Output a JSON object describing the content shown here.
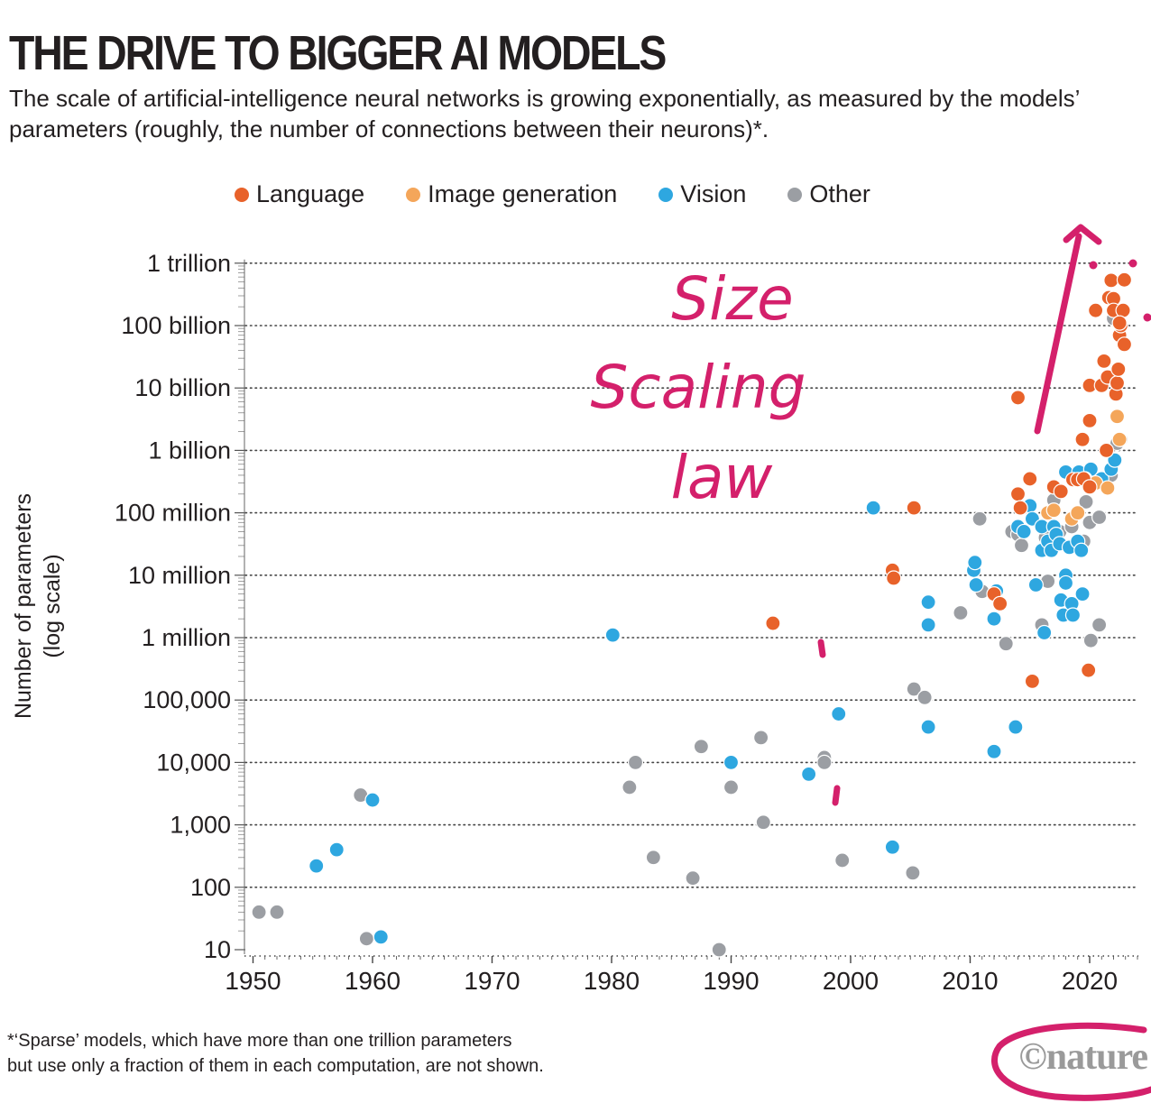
{
  "header": {
    "title": "THE DRIVE TO BIGGER AI MODELS",
    "subtitle": "The scale of artificial-intelligence neural networks is growing exponentially, as measured by the models’ parameters (roughly, the number of connections between their neurons)*."
  },
  "legend": [
    {
      "label": "Language",
      "color": "#e8622a"
    },
    {
      "label": "Image generation",
      "color": "#f4a65a"
    },
    {
      "label": "Vision",
      "color": "#2ea7e0"
    },
    {
      "label": "Other",
      "color": "#9b9ea3"
    }
  ],
  "annotations": {
    "handwritten_note": [
      "Size",
      "Scaling",
      "law"
    ],
    "ink_color": "#d4206b"
  },
  "footnote": {
    "line1": "*‘Sparse’ models, which have more than one trillion parameters",
    "line2": "but use only a fraction of them in each computation, are not shown."
  },
  "logo": {
    "text": "©nature"
  },
  "chart_data": {
    "type": "scatter",
    "title": "THE DRIVE TO BIGGER AI MODELS",
    "xlabel": "",
    "ylabel": "Number of parameters (log scale)",
    "ylabel_lines": [
      "Number of parameters",
      "(log scale)"
    ],
    "xlim": [
      1949,
      2025
    ],
    "ylim": [
      8,
      1500000000000
    ],
    "y_scale": "log",
    "grid": true,
    "legend_position": "top",
    "x_ticks": [
      1950,
      1960,
      1970,
      1980,
      1990,
      2000,
      2010,
      2020
    ],
    "y_ticks": [
      {
        "value": 10,
        "label": "10"
      },
      {
        "value": 100,
        "label": "100"
      },
      {
        "value": 1000,
        "label": "1,000"
      },
      {
        "value": 10000,
        "label": "10,000"
      },
      {
        "value": 100000,
        "label": "100,000"
      },
      {
        "value": 1000000,
        "label": "1 million"
      },
      {
        "value": 10000000,
        "label": "10 million"
      },
      {
        "value": 100000000,
        "label": "100 million"
      },
      {
        "value": 1000000000,
        "label": "1 billion"
      },
      {
        "value": 10000000000,
        "label": "10 billion"
      },
      {
        "value": 100000000000,
        "label": "100 billion"
      },
      {
        "value": 1000000000000,
        "label": "1 trillion"
      }
    ],
    "series": [
      {
        "name": "Language",
        "color": "#e8622a",
        "points": [
          [
            1993.5,
            1700000.0
          ],
          [
            2003.5,
            12000000.0
          ],
          [
            2003.6,
            9000000.0
          ],
          [
            2005.3,
            120000000.0
          ],
          [
            2012,
            5000000.0
          ],
          [
            2012.5,
            3500000.0
          ],
          [
            2014,
            7000000000.0
          ],
          [
            2014,
            200000000.0
          ],
          [
            2014.2,
            120000000.0
          ],
          [
            2015,
            350000000.0
          ],
          [
            2015.2,
            200000.0
          ],
          [
            2017,
            260000000.0
          ],
          [
            2017.6,
            220000000.0
          ],
          [
            2018.6,
            340000000.0
          ],
          [
            2019,
            340000000.0
          ],
          [
            2019.4,
            1500000000.0
          ],
          [
            2019.5,
            350000000.0
          ],
          [
            2019.9,
            300000.0
          ],
          [
            2020,
            3000000000.0
          ],
          [
            2020,
            11000000000.0
          ],
          [
            2020,
            260000000.0
          ],
          [
            2020.5,
            175000000000.0
          ],
          [
            2021,
            11000000000.0
          ],
          [
            2021.2,
            27000000000.0
          ],
          [
            2021.4,
            1000000000.0
          ],
          [
            2021.5,
            15000000000.0
          ],
          [
            2021.6,
            280000000000.0
          ],
          [
            2021.8,
            530000000000.0
          ],
          [
            2022,
            270000000000.0
          ],
          [
            2022,
            175000000000.0
          ],
          [
            2022.2,
            8000000000.0
          ],
          [
            2022.3,
            12000000000.0
          ],
          [
            2022.4,
            20000000000.0
          ],
          [
            2022.5,
            70000000000.0
          ],
          [
            2022.6,
            100000000000.0
          ],
          [
            2022.8,
            175000000000.0
          ],
          [
            2022.9,
            540000000000.0
          ],
          [
            2022.9,
            50000000000.0
          ],
          [
            2022.5,
            110000000000.0
          ]
        ]
      },
      {
        "name": "Image generation",
        "color": "#f4a65a",
        "points": [
          [
            2016.5,
            100000000.0
          ],
          [
            2017,
            110000000.0
          ],
          [
            2018.5,
            80000000.0
          ],
          [
            2019,
            100000000.0
          ],
          [
            2019.6,
            350000000.0
          ],
          [
            2020.5,
            300000000.0
          ],
          [
            2021.5,
            250000000.0
          ],
          [
            2022.3,
            3500000000.0
          ],
          [
            2022.5,
            1500000000.0
          ]
        ]
      },
      {
        "name": "Vision",
        "color": "#2ea7e0",
        "points": [
          [
            1955.3,
            220
          ],
          [
            1957,
            400
          ],
          [
            1960,
            2500
          ],
          [
            1960.7,
            16
          ],
          [
            1980.1,
            1100000.0
          ],
          [
            1990,
            10000
          ],
          [
            1996.5,
            6500
          ],
          [
            1999,
            60000
          ],
          [
            2001.9,
            120000000.0
          ],
          [
            2003.5,
            440
          ],
          [
            2006.5,
            3700000.0
          ],
          [
            2006.5,
            1600000.0
          ],
          [
            2006.5,
            37000
          ],
          [
            2010.3,
            12000000.0
          ],
          [
            2010.4,
            16000000.0
          ],
          [
            2010.5,
            7000000.0
          ],
          [
            2012,
            2000000.0
          ],
          [
            2012.2,
            5600000.0
          ],
          [
            2012,
            15000
          ],
          [
            2013.8,
            37000
          ],
          [
            2014,
            60000000.0
          ],
          [
            2014.5,
            50000000.0
          ],
          [
            2015,
            130000000.0
          ],
          [
            2015.2,
            80000000.0
          ],
          [
            2015.5,
            7000000.0
          ],
          [
            2016,
            60000000.0
          ],
          [
            2016,
            25000000.0
          ],
          [
            2016.2,
            1200000.0
          ],
          [
            2016.5,
            35000000.0
          ],
          [
            2016.8,
            25000000.0
          ],
          [
            2017,
            60000000.0
          ],
          [
            2017.2,
            45000000.0
          ],
          [
            2017.5,
            32000000.0
          ],
          [
            2017.6,
            4000000.0
          ],
          [
            2017.8,
            2300000.0
          ],
          [
            2018,
            450000000.0
          ],
          [
            2018,
            10000000.0
          ],
          [
            2018,
            7500000.0
          ],
          [
            2018.3,
            28000000.0
          ],
          [
            2018.5,
            3500000.0
          ],
          [
            2018.6,
            2300000.0
          ],
          [
            2019,
            35000000.0
          ],
          [
            2019.1,
            450000000.0
          ],
          [
            2019.3,
            25000000.0
          ],
          [
            2019.4,
            5000000.0
          ],
          [
            2020.1,
            500000000.0
          ],
          [
            2021,
            350000000.0
          ],
          [
            2021.8,
            500000000.0
          ],
          [
            2022.1,
            700000000.0
          ]
        ]
      },
      {
        "name": "Other",
        "color": "#9b9ea3",
        "points": [
          [
            1950.5,
            40
          ],
          [
            1952,
            40
          ],
          [
            1959,
            3000
          ],
          [
            1959.5,
            15
          ],
          [
            1981.5,
            4000
          ],
          [
            1982,
            10000
          ],
          [
            1983.5,
            300
          ],
          [
            1986.8,
            140
          ],
          [
            1987.5,
            18000
          ],
          [
            1989,
            10
          ],
          [
            1990,
            4000
          ],
          [
            1992.5,
            25000
          ],
          [
            1992.7,
            1100
          ],
          [
            1997.8,
            12000
          ],
          [
            1997.8,
            10000
          ],
          [
            1999.3,
            270
          ],
          [
            2005.2,
            170
          ],
          [
            2005.3,
            150000
          ],
          [
            2006.2,
            110000
          ],
          [
            2009.2,
            2500000.0
          ],
          [
            2010.8,
            80000000.0
          ],
          [
            2011,
            5500000.0
          ],
          [
            2013,
            800000.0
          ],
          [
            2013.5,
            50000000.0
          ],
          [
            2014,
            45000000.0
          ],
          [
            2014.3,
            30000000.0
          ],
          [
            2016,
            1600000.0
          ],
          [
            2016.3,
            40000000.0
          ],
          [
            2016.5,
            8000000.0
          ],
          [
            2017,
            160000000.0
          ],
          [
            2017.5,
            50000000.0
          ],
          [
            2018.5,
            60000000.0
          ],
          [
            2019.5,
            35000000.0
          ],
          [
            2019.7,
            150000000.0
          ],
          [
            2020,
            70000000.0
          ],
          [
            2020.1,
            900000.0
          ],
          [
            2020.8,
            85000000.0
          ],
          [
            2020.8,
            1600000.0
          ],
          [
            2022,
            130000000000.0
          ],
          [
            2022.3,
            1300000000.0
          ],
          [
            2022.6,
            1500000000.0
          ],
          [
            2021.8,
            400000000.0
          ]
        ]
      }
    ]
  }
}
